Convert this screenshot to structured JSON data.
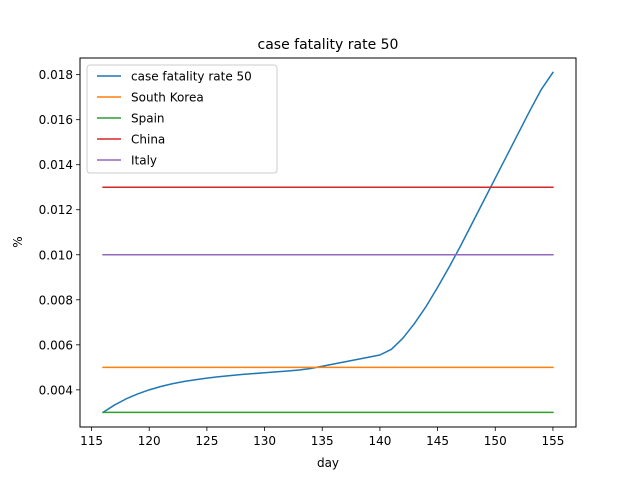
{
  "chart_data": {
    "type": "line",
    "title": "case fatality rate 50",
    "xlabel": "day",
    "ylabel": "%",
    "xlim": [
      114,
      157
    ],
    "ylim": [
      0.00235,
      0.01874
    ],
    "xticks": [
      115,
      120,
      125,
      130,
      135,
      140,
      145,
      150,
      155
    ],
    "yticks": [
      0.004,
      0.006,
      0.008,
      0.01,
      0.012,
      0.014,
      0.016,
      0.018
    ],
    "ytick_labels": [
      "0.004",
      "0.006",
      "0.008",
      "0.010",
      "0.012",
      "0.014",
      "0.016",
      "0.018"
    ],
    "grid": false,
    "legend_position": "upper-left",
    "series": [
      {
        "name": "case fatality rate 50",
        "color": "#1f77b4",
        "x": [
          116,
          117,
          118,
          119,
          120,
          121,
          122,
          123,
          124,
          125,
          126,
          127,
          128,
          129,
          130,
          131,
          132,
          133,
          134,
          135,
          136,
          137,
          138,
          139,
          140,
          141,
          142,
          143,
          144,
          145,
          146,
          147,
          148,
          149,
          150,
          151,
          152,
          153,
          154,
          155
        ],
        "y": [
          0.003,
          0.00333,
          0.0036,
          0.00382,
          0.004,
          0.00415,
          0.00427,
          0.00437,
          0.00445,
          0.00452,
          0.00458,
          0.00463,
          0.00468,
          0.00472,
          0.00476,
          0.0048,
          0.00484,
          0.00488,
          0.00495,
          0.00505,
          0.00515,
          0.00525,
          0.00535,
          0.00545,
          0.00555,
          0.0058,
          0.0063,
          0.00695,
          0.0077,
          0.00855,
          0.00945,
          0.0104,
          0.0114,
          0.0124,
          0.0134,
          0.0144,
          0.0154,
          0.0164,
          0.01735,
          0.0181
        ]
      },
      {
        "name": "South Korea",
        "color": "#ff7f0e",
        "x": [
          116,
          155
        ],
        "y": [
          0.005,
          0.005
        ]
      },
      {
        "name": "Spain",
        "color": "#2ca02c",
        "x": [
          116,
          155
        ],
        "y": [
          0.003,
          0.003
        ]
      },
      {
        "name": "China",
        "color": "#d62728",
        "x": [
          116,
          155
        ],
        "y": [
          0.013,
          0.013
        ]
      },
      {
        "name": "Italy",
        "color": "#9467bd",
        "x": [
          116,
          155
        ],
        "y": [
          0.01,
          0.01
        ]
      }
    ]
  }
}
